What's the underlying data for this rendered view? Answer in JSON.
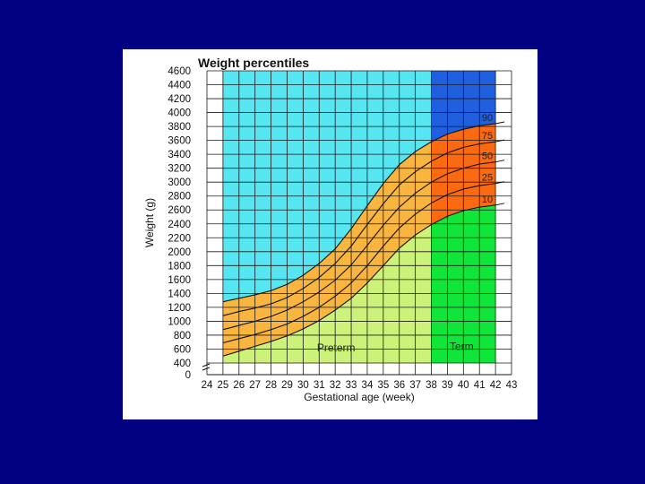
{
  "colors": {
    "slide_background": "#000080",
    "card_background": "#ffffff",
    "preterm_upper": "#56e6f2",
    "preterm_lower": "#cdf27a",
    "term_upper": "#1f5fe0",
    "term_lower": "#10e63a",
    "percentile_band_preterm": "#f9b53e",
    "percentile_band_term": "#fb6a10",
    "grid": "#1a1a1a"
  },
  "chart_data": {
    "type": "line",
    "title": "Weight percentiles",
    "xlabel": "Gestational age (week)",
    "ylabel": "Weight (g)",
    "x_ticks": [
      "24",
      "25",
      "26",
      "27",
      "28",
      "29",
      "30",
      "31",
      "32",
      "33",
      "34",
      "35",
      "36",
      "37",
      "38",
      "39",
      "40",
      "41",
      "42",
      "43"
    ],
    "y_ticks": [
      "0",
      "400",
      "600",
      "800",
      "1000",
      "1200",
      "1400",
      "1600",
      "1800",
      "2000",
      "2200",
      "2400",
      "2600",
      "2800",
      "3000",
      "3200",
      "3400",
      "3600",
      "3800",
      "4000",
      "4200",
      "4400",
      "4600"
    ],
    "xlim": [
      24,
      43
    ],
    "ylim": [
      0,
      4600
    ],
    "y_axis_break": true,
    "grid": true,
    "regions": [
      {
        "label": "Preterm",
        "x_range": [
          25,
          38
        ]
      },
      {
        "label": "Term",
        "x_range": [
          38,
          42
        ]
      }
    ],
    "x": [
      25,
      26,
      27,
      28,
      29,
      30,
      31,
      32,
      33,
      34,
      35,
      36,
      37,
      38,
      39,
      40,
      41,
      42
    ],
    "series": [
      {
        "name": "90",
        "values": [
          1280,
          1330,
          1380,
          1440,
          1530,
          1660,
          1830,
          2040,
          2330,
          2660,
          2980,
          3250,
          3440,
          3580,
          3690,
          3760,
          3810,
          3840
        ]
      },
      {
        "name": "75",
        "values": [
          1080,
          1140,
          1190,
          1250,
          1340,
          1470,
          1630,
          1830,
          2080,
          2390,
          2690,
          2960,
          3150,
          3300,
          3420,
          3500,
          3550,
          3580
        ]
      },
      {
        "name": "50",
        "values": [
          880,
          940,
          1000,
          1070,
          1160,
          1280,
          1420,
          1590,
          1810,
          2090,
          2380,
          2640,
          2840,
          3000,
          3120,
          3200,
          3260,
          3290
        ]
      },
      {
        "name": "25",
        "values": [
          690,
          750,
          810,
          880,
          960,
          1070,
          1200,
          1360,
          1550,
          1800,
          2080,
          2340,
          2540,
          2700,
          2820,
          2900,
          2950,
          2980
        ]
      },
      {
        "name": "10",
        "values": [
          500,
          570,
          640,
          710,
          790,
          890,
          1010,
          1160,
          1330,
          1550,
          1800,
          2050,
          2240,
          2390,
          2510,
          2590,
          2640,
          2670
        ]
      }
    ],
    "percentile_labels": [
      "90",
      "75",
      "50",
      "25",
      "10"
    ]
  }
}
